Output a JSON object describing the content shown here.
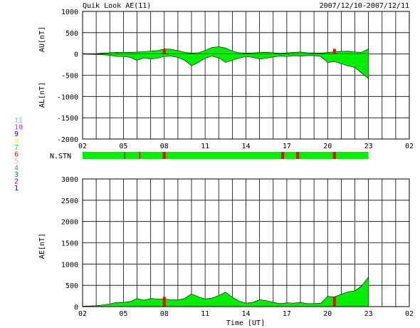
{
  "header": {
    "title": "Quik Look AE(11)",
    "date_range": "2007/12/10-2007/12/11"
  },
  "colors": {
    "fill": "#00ee00",
    "mark": "#ff0000",
    "axis": "#000000",
    "grid": "#000000"
  },
  "stations_legend": [
    {
      "label": "11",
      "color": "#00ffff"
    },
    {
      "label": "10",
      "color": "#ff00ff"
    },
    {
      "label": "9",
      "color": "#0000ff"
    },
    {
      "label": "8",
      "color": "#ffff00"
    },
    {
      "label": "7",
      "color": "#00ff00"
    },
    {
      "label": "6",
      "color": "#ff0000"
    },
    {
      "label": "5",
      "color": "#c0c0c0"
    },
    {
      "label": "4",
      "color": "#808080"
    },
    {
      "label": "3",
      "color": "#008080"
    },
    {
      "label": "2",
      "color": "#800080"
    },
    {
      "label": "1",
      "color": "#0000aa"
    }
  ],
  "chart_data": [
    {
      "type": "area",
      "title": "",
      "ylabel_upper": "AU[nT]",
      "ylabel_lower": "AL[nT]",
      "xlim_hours": [
        2,
        26
      ],
      "ylim": [
        -2000,
        1000
      ],
      "yticks": [
        1000,
        500,
        0,
        -500,
        -1000,
        -1500,
        -2000
      ],
      "xtick_labels": [
        "02",
        "05",
        "08",
        "11",
        "14",
        "17",
        "20",
        "23",
        "02"
      ],
      "xtick_hours": [
        2,
        5,
        8,
        11,
        14,
        17,
        20,
        23,
        26
      ],
      "grid": true,
      "series": [
        {
          "name": "AU",
          "x": [
            2,
            3,
            3.5,
            4,
            4.5,
            5,
            5.5,
            6,
            6.5,
            7,
            7.5,
            8,
            8.5,
            9,
            9.5,
            10,
            10.5,
            11,
            11.5,
            12,
            12.5,
            13,
            13.5,
            14,
            14.5,
            15,
            15.5,
            16,
            16.5,
            17,
            17.5,
            18,
            18.5,
            19,
            19.5,
            20,
            20.5,
            21,
            21.5,
            22,
            22.5,
            23
          ],
          "values": [
            5,
            8,
            20,
            30,
            40,
            35,
            40,
            45,
            55,
            70,
            80,
            120,
            110,
            80,
            40,
            20,
            30,
            80,
            150,
            170,
            140,
            70,
            30,
            20,
            25,
            35,
            40,
            30,
            15,
            25,
            40,
            45,
            30,
            25,
            20,
            35,
            50,
            60,
            65,
            45,
            40,
            120
          ]
        },
        {
          "name": "AL",
          "x": [
            2,
            3,
            3.5,
            4,
            4.5,
            5,
            5.5,
            6,
            6.5,
            7,
            7.5,
            8,
            8.5,
            9,
            9.5,
            10,
            10.5,
            11,
            11.5,
            12,
            12.5,
            13,
            13.5,
            14,
            14.5,
            15,
            15.5,
            16,
            16.5,
            17,
            17.5,
            18,
            18.5,
            19,
            19.5,
            20,
            20.5,
            21,
            21.5,
            22,
            22.5,
            23
          ],
          "values": [
            -5,
            -10,
            -20,
            -30,
            -60,
            -60,
            -80,
            -150,
            -90,
            -120,
            -100,
            -60,
            -50,
            -80,
            -150,
            -280,
            -200,
            -100,
            -50,
            -90,
            -200,
            -150,
            -100,
            -60,
            -80,
            -120,
            -100,
            -70,
            -50,
            -60,
            -40,
            -50,
            -40,
            -40,
            -60,
            -200,
            -180,
            -230,
            -280,
            -320,
            -450,
            -580
          ]
        }
      ]
    },
    {
      "type": "bar",
      "title": "N.STN",
      "xlim_hours": [
        2,
        26
      ],
      "red_marks_hours": [
        5.1,
        6.2,
        8.0,
        16.7,
        17.8,
        20.5
      ]
    },
    {
      "type": "area",
      "title": "",
      "ylabel": "AE[nT]",
      "xlabel": "Time [UT]",
      "xlim_hours": [
        2,
        26
      ],
      "ylim": [
        0,
        3000
      ],
      "yticks": [
        3000,
        2500,
        2000,
        1500,
        1000,
        500,
        0
      ],
      "xtick_labels": [
        "02",
        "05",
        "08",
        "11",
        "14",
        "17",
        "20",
        "23",
        "02"
      ],
      "xtick_hours": [
        2,
        5,
        8,
        11,
        14,
        17,
        20,
        23,
        26
      ],
      "grid": true,
      "series": [
        {
          "name": "AE",
          "x": [
            2,
            3,
            3.5,
            4,
            4.5,
            5,
            5.5,
            6,
            6.5,
            7,
            7.5,
            8,
            8.5,
            9,
            9.5,
            10,
            10.5,
            11,
            11.5,
            12,
            12.5,
            13,
            13.5,
            14,
            14.5,
            15,
            15.5,
            16,
            16.5,
            17,
            17.5,
            18,
            18.5,
            19,
            19.5,
            20,
            20.5,
            21,
            21.5,
            22,
            22.5,
            23
          ],
          "values": [
            10,
            20,
            40,
            60,
            100,
            100,
            120,
            190,
            150,
            190,
            180,
            180,
            160,
            160,
            190,
            300,
            230,
            180,
            200,
            260,
            340,
            220,
            130,
            80,
            100,
            160,
            140,
            100,
            70,
            90,
            80,
            100,
            70,
            70,
            80,
            240,
            230,
            290,
            350,
            370,
            490,
            700
          ]
        }
      ]
    }
  ]
}
